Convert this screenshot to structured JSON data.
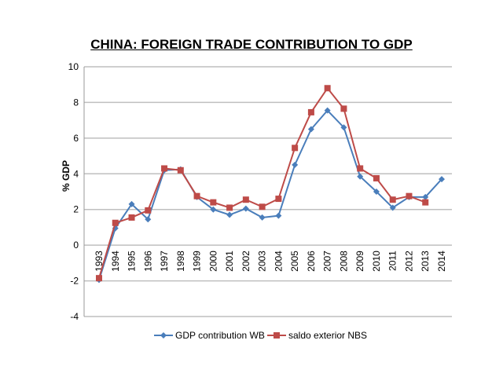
{
  "chart_data": {
    "type": "line",
    "title": "CHINA: FOREIGN TRADE CONTRIBUTION TO GDP",
    "xlabel": "",
    "ylabel": "% GDP",
    "ylim": [
      -4,
      10
    ],
    "yticks": [
      -4,
      -2,
      0,
      2,
      4,
      6,
      8,
      10
    ],
    "grid": true,
    "legend_position": "bottom",
    "categories": [
      "1993",
      "1994",
      "1995",
      "1996",
      "1997",
      "1998",
      "1999",
      "2000",
      "2001",
      "2002",
      "2003",
      "2004",
      "2005",
      "2006",
      "2007",
      "2008",
      "2009",
      "2010",
      "2011",
      "2012",
      "2013",
      "2014"
    ],
    "series": [
      {
        "name": "GDP contribution WB",
        "color": "#4A7EBB",
        "marker": "diamond",
        "values": [
          -1.95,
          0.95,
          2.3,
          1.45,
          4.2,
          4.25,
          2.7,
          2.0,
          1.7,
          2.05,
          1.55,
          1.65,
          4.5,
          6.5,
          7.55,
          6.6,
          3.85,
          3.0,
          2.1,
          2.7,
          2.7,
          3.7
        ]
      },
      {
        "name": "saldo exterior NBS",
        "color": "#BE4B48",
        "marker": "square",
        "values": [
          -1.85,
          1.25,
          1.55,
          1.95,
          4.3,
          4.2,
          2.75,
          2.4,
          2.1,
          2.55,
          2.15,
          2.6,
          5.45,
          7.45,
          8.8,
          7.65,
          4.3,
          3.75,
          2.55,
          2.75,
          2.4,
          null
        ]
      }
    ]
  }
}
